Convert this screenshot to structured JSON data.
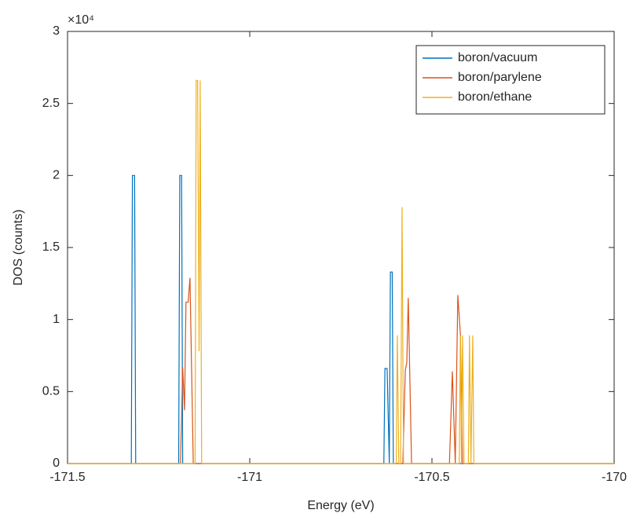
{
  "chart_data": {
    "type": "line",
    "x_label": "Energy (eV)",
    "y_label": "DOS (counts)",
    "y_multiplier": "×10⁴",
    "xlim": [
      -171.5,
      -170
    ],
    "xticks": [
      -171.5,
      -171,
      -170.5,
      -170
    ],
    "ylim": [
      0,
      3
    ],
    "yticks": [
      0,
      0.5,
      1,
      1.5,
      2,
      2.5,
      3
    ],
    "legend_position": "upper right",
    "grid": false,
    "series": [
      {
        "name": "boron/vacuum",
        "color": "#0072BD",
        "x": [
          -171.5,
          -171.325,
          -171.322,
          -171.316,
          -171.313,
          -171.195,
          -171.192,
          -171.187,
          -171.184,
          -170.632,
          -170.629,
          -170.623,
          -170.617,
          -170.614,
          -170.609,
          -170.606,
          -170
        ],
        "values": [
          0,
          0,
          2.0,
          2.0,
          0,
          0,
          2.0,
          2.0,
          0,
          0,
          0.66,
          0.66,
          0,
          1.33,
          1.33,
          0,
          0
        ]
      },
      {
        "name": "boron/parylene",
        "color": "#D95319",
        "x": [
          -171.5,
          -171.19,
          -171.184,
          -171.179,
          -171.175,
          -171.169,
          -171.164,
          -171.155,
          -170.58,
          -170.573,
          -170.569,
          -170.565,
          -170.556,
          -170.452,
          -170.444,
          -170.436,
          -170.429,
          -170.422,
          -170.416,
          -170
        ],
        "values": [
          0,
          0,
          0.67,
          0.37,
          1.12,
          1.12,
          1.29,
          0,
          0,
          0.65,
          0.7,
          1.15,
          0,
          0,
          0.64,
          0,
          1.17,
          0.9,
          0,
          0
        ]
      },
      {
        "name": "boron/ethane",
        "color": "#EDB120",
        "x": [
          -171.5,
          -171.15,
          -171.147,
          -171.143,
          -171.139,
          -171.136,
          -171.132,
          -170.598,
          -170.595,
          -170.591,
          -170.586,
          -170.582,
          -170.578,
          -170.425,
          -170.422,
          -170.419,
          -170.416,
          -170.412,
          -170.4,
          -170.397,
          -170.393,
          -170.388,
          -170.385,
          -170
        ],
        "values": [
          0,
          0,
          2.66,
          2.66,
          0.78,
          2.66,
          0,
          0,
          0.89,
          0,
          0,
          1.78,
          0,
          0,
          0.89,
          0,
          0.89,
          0,
          0,
          0.89,
          0,
          0.89,
          0,
          0
        ]
      }
    ]
  }
}
